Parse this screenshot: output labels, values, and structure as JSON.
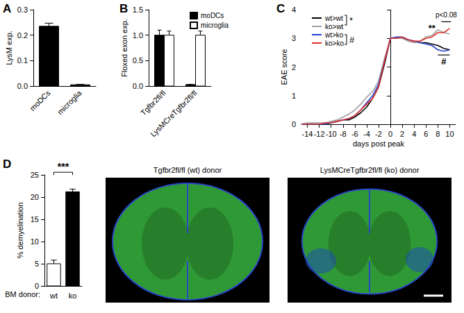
{
  "chart_data": [
    {
      "type": "bar",
      "title": "A",
      "ylabel": "LysM exp.",
      "categories": [
        "moDCs",
        "microglia"
      ],
      "values": [
        0.235,
        0.005
      ],
      "errors": [
        0.012,
        0.002
      ],
      "colors": [
        "#000000",
        "#000000"
      ],
      "ylim": [
        0,
        0.3
      ],
      "yticks": [
        {
          "value": 0,
          "label": "0.0"
        },
        0.1,
        0.2,
        0.3
      ],
      "grid": false
    },
    {
      "type": "bar",
      "title": "B",
      "ylabel": "Floxed exon exp.",
      "categories": [
        "Tgfbr2fl/fl",
        "LysMCreTgfbr2fl/fl"
      ],
      "series": [
        {
          "name": "moDCs",
          "color": "#000000",
          "values": [
            1.0,
            0.03
          ],
          "errors": [
            0.1,
            0.005
          ]
        },
        {
          "name": "microglia",
          "color": "#ffffff",
          "values": [
            1.0,
            1.0
          ],
          "errors": [
            0.08,
            0.08
          ]
        }
      ],
      "ylim": [
        0,
        1.5
      ],
      "yticks": [
        {
          "value": 0,
          "label": "0.0"
        },
        0.5,
        {
          "value": 1,
          "label": "1.0"
        },
        1.5
      ],
      "legend": "upper right",
      "grid": false
    },
    {
      "type": "line",
      "title": "C",
      "xlabel": "days post peak",
      "ylabel": "EAE score",
      "x": [
        -15,
        -14,
        -13,
        -12,
        -11,
        -10,
        -9,
        -8,
        -7,
        -6,
        -5,
        -4,
        -3,
        -2,
        -1,
        0,
        1,
        2,
        3,
        4,
        5,
        6,
        7,
        8,
        9,
        10
      ],
      "series": [
        {
          "name": "wt>wt",
          "color": "#000000",
          "values": [
            0,
            0,
            0,
            0,
            0,
            0.05,
            0.1,
            0.15,
            0.15,
            0.25,
            0.4,
            0.6,
            0.9,
            1.3,
            2.1,
            3.0,
            3.0,
            3.0,
            2.95,
            2.9,
            2.85,
            2.85,
            2.8,
            2.75,
            2.65,
            2.6
          ]
        },
        {
          "name": "ko>wt",
          "color": "#a0a0a0",
          "values": [
            0,
            0.05,
            0.05,
            0.05,
            0.05,
            0.1,
            0.15,
            0.25,
            0.35,
            0.5,
            0.7,
            0.95,
            1.15,
            1.5,
            2.3,
            3.0,
            3.0,
            3.0,
            2.9,
            2.85,
            2.9,
            3.05,
            3.1,
            3.3,
            3.2,
            3.15
          ]
        },
        {
          "name": "wt>ko",
          "color": "#1f3fd0",
          "values": [
            0,
            0,
            0,
            0,
            0,
            0.05,
            0.1,
            0.15,
            0.2,
            0.3,
            0.5,
            0.75,
            1.0,
            1.4,
            2.2,
            3.0,
            3.05,
            3.05,
            2.95,
            2.9,
            2.85,
            2.8,
            2.75,
            2.6,
            2.55,
            2.6
          ]
        },
        {
          "name": "ko>ko",
          "color": "#e0302a",
          "values": [
            0,
            0,
            0,
            0,
            0.05,
            0.05,
            0.1,
            0.15,
            0.2,
            0.3,
            0.5,
            0.7,
            0.9,
            1.3,
            2.2,
            3.0,
            3.0,
            3.05,
            2.95,
            2.9,
            2.9,
            3.0,
            3.05,
            3.2,
            3.2,
            3.35
          ]
        }
      ],
      "xlim": [
        -15,
        11
      ],
      "xticks": [
        -14,
        -12,
        -10,
        -8,
        -6,
        -4,
        -2,
        0,
        2,
        4,
        6,
        8,
        10
      ],
      "ylim": [
        0,
        4
      ],
      "yticks": [
        0,
        1,
        2,
        3,
        4
      ],
      "legend": "upper left",
      "grid": false,
      "legend_marks": [
        {
          "text": "*",
          "series": [
            "wt>wt",
            "ko>wt"
          ]
        },
        {
          "text": "#",
          "series": [
            "wt>ko",
            "ko>ko"
          ]
        }
      ],
      "annotations": [
        {
          "text": "**",
          "x": 7,
          "y": 3.35
        },
        {
          "text": "p<0.08",
          "x": 9.4,
          "y": 3.82,
          "line": {
            "x_range": [
              8.6,
              10.2
            ],
            "y": 3.58
          }
        },
        {
          "text": "#",
          "x": 9,
          "y": 2.2,
          "line": {
            "x_range": [
              8,
              10
            ],
            "y": 2.42
          }
        }
      ]
    },
    {
      "type": "bar",
      "title": "D",
      "ylabel": "% demyelination",
      "xlabel": "BM donor:",
      "categories": [
        "wt",
        "ko"
      ],
      "values": [
        5.0,
        21.2
      ],
      "errors": [
        0.8,
        0.6
      ],
      "colors": [
        "#ffffff",
        "#000000"
      ],
      "ylim": [
        0,
        25
      ],
      "yticks": [
        0,
        5,
        10,
        15,
        20,
        25
      ],
      "grid": false,
      "annotations": [
        {
          "text": "***",
          "between": [
            "wt",
            "ko"
          ],
          "y": 25.6
        }
      ],
      "images": [
        {
          "title": "Tgfbr2fl/fl (wt) donor"
        },
        {
          "title": "LysMCreTgfbr2fl/fl (ko) donor"
        }
      ]
    }
  ]
}
